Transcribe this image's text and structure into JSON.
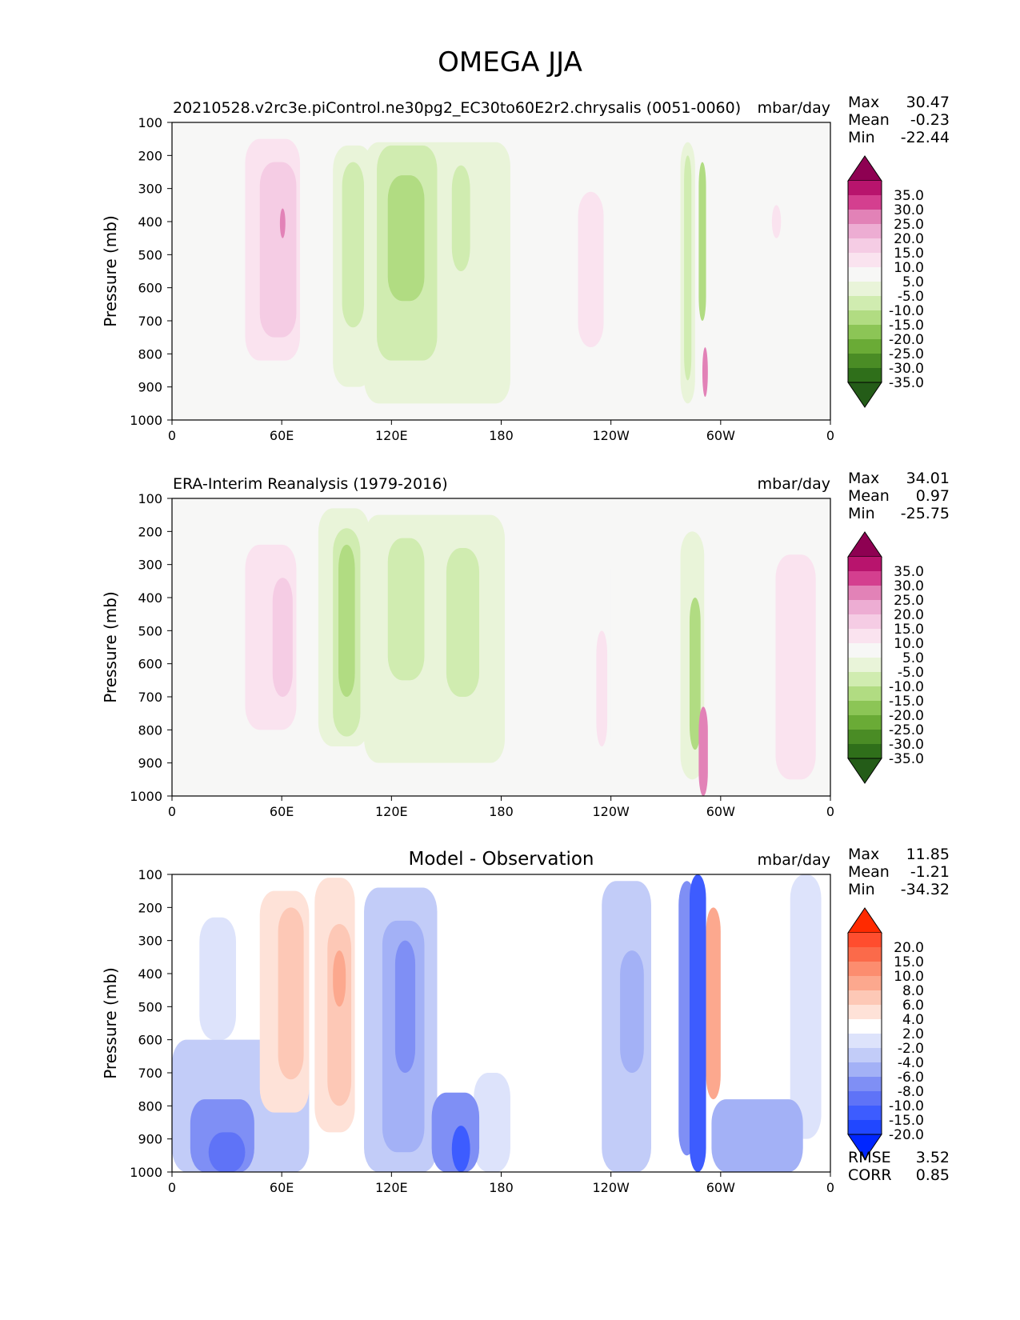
{
  "figure": {
    "title": "OMEGA JJA"
  },
  "panels": [
    {
      "id": "model",
      "title_left": "20210528.v2rc3e.piControl.ne30pg2_EC30to60E2r2.chrysalis (0051-0060)",
      "title_center": "",
      "units": "mbar/day",
      "stats": [
        {
          "label": "Max",
          "value": "30.47"
        },
        {
          "label": "Mean",
          "value": "-0.23"
        },
        {
          "label": "Min",
          "value": "-22.44"
        }
      ],
      "colorbar": {
        "labels": [
          "35.0",
          "30.0",
          "25.0",
          "20.0",
          "15.0",
          "10.0",
          "5.0",
          "-5.0",
          "-10.0",
          "-15.0",
          "-20.0",
          "-25.0",
          "-30.0",
          "-35.0"
        ],
        "colors": [
          "#8e0152",
          "#b8146d",
          "#d43f8f",
          "#e282b7",
          "#edadd3",
          "#f5cce4",
          "#fae3ef",
          "#f7f7f6",
          "#e9f4d9",
          "#d0ecb0",
          "#b1dc82",
          "#8cc556",
          "#6aab36",
          "#4a8c25",
          "#2f6f1a",
          "#245c18"
        ]
      },
      "footer_stats": []
    },
    {
      "id": "obs",
      "title_left": "ERA-Interim Reanalysis (1979-2016)",
      "title_center": "",
      "units": "mbar/day",
      "stats": [
        {
          "label": "Max",
          "value": "34.01"
        },
        {
          "label": "Mean",
          "value": "0.97"
        },
        {
          "label": "Min",
          "value": "-25.75"
        }
      ],
      "colorbar": {
        "labels": [
          "35.0",
          "30.0",
          "25.0",
          "20.0",
          "15.0",
          "10.0",
          "5.0",
          "-5.0",
          "-10.0",
          "-15.0",
          "-20.0",
          "-25.0",
          "-30.0",
          "-35.0"
        ],
        "colors": [
          "#8e0152",
          "#b8146d",
          "#d43f8f",
          "#e282b7",
          "#edadd3",
          "#f5cce4",
          "#fae3ef",
          "#f7f7f6",
          "#e9f4d9",
          "#d0ecb0",
          "#b1dc82",
          "#8cc556",
          "#6aab36",
          "#4a8c25",
          "#2f6f1a",
          "#245c18"
        ]
      },
      "footer_stats": []
    },
    {
      "id": "diff",
      "title_left": "",
      "title_center": "Model - Observation",
      "units": "mbar/day",
      "stats": [
        {
          "label": "Max",
          "value": "11.85"
        },
        {
          "label": "Mean",
          "value": "-1.21"
        },
        {
          "label": "Min",
          "value": "-34.32"
        }
      ],
      "colorbar": {
        "labels": [
          "20.0",
          "15.0",
          "10.0",
          "8.0",
          "6.0",
          "4.0",
          "2.0",
          "-2.0",
          "-4.0",
          "-6.0",
          "-8.0",
          "-10.0",
          "-15.0",
          "-20.0"
        ],
        "colors": [
          "#ff2a00",
          "#ff4d2e",
          "#fb6a4a",
          "#fc8d6f",
          "#fca88e",
          "#fdc8b6",
          "#fee2d8",
          "#ffffff",
          "#dde3fb",
          "#c2ccf8",
          "#a3b1f6",
          "#7f8ff5",
          "#5f73f7",
          "#3d5cff",
          "#2147ff",
          "#0026ff"
        ]
      },
      "footer_stats": [
        {
          "label": "RMSE",
          "value": "3.52"
        },
        {
          "label": "CORR",
          "value": "0.85"
        }
      ]
    }
  ],
  "chart_data": [
    {
      "type": "heatmap",
      "title": "20210528.v2rc3e.piControl.ne30pg2_EC30to60E2r2.chrysalis (0051-0060)",
      "ylabel": "Pressure (mb)",
      "xlabel": "",
      "x_ticks": [
        "0",
        "60E",
        "120E",
        "180",
        "120W",
        "60W",
        "0"
      ],
      "y_ticks": [
        "100",
        "200",
        "300",
        "400",
        "500",
        "600",
        "700",
        "800",
        "900",
        "1000"
      ],
      "xlim": [
        0,
        360
      ],
      "ylim": [
        1000,
        100
      ],
      "y_inverted": true,
      "units": "mbar/day",
      "features": [
        {
          "lon": [
            5,
            35
          ],
          "p": [
            170,
            850
          ],
          "value": 5
        },
        {
          "lon": [
            40,
            70
          ],
          "p": [
            150,
            820
          ],
          "value": 10
        },
        {
          "lon": [
            48,
            68
          ],
          "p": [
            220,
            750
          ],
          "value": 15
        },
        {
          "lon": [
            59,
            62
          ],
          "p": [
            360,
            450
          ],
          "value": 25
        },
        {
          "lon": [
            88,
            110
          ],
          "p": [
            170,
            900
          ],
          "value": -5
        },
        {
          "lon": [
            93,
            105
          ],
          "p": [
            220,
            720
          ],
          "value": -10
        },
        {
          "lon": [
            105,
            185
          ],
          "p": [
            160,
            950
          ],
          "value": -5
        },
        {
          "lon": [
            112,
            145
          ],
          "p": [
            170,
            820
          ],
          "value": -10
        },
        {
          "lon": [
            118,
            138
          ],
          "p": [
            260,
            640
          ],
          "value": -15
        },
        {
          "lon": [
            153,
            163
          ],
          "p": [
            230,
            550
          ],
          "value": -10
        },
        {
          "lon": [
            213,
            238
          ],
          "p": [
            220,
            920
          ],
          "value": 5
        },
        {
          "lon": [
            222,
            236
          ],
          "p": [
            310,
            780
          ],
          "value": 10
        },
        {
          "lon": [
            278,
            286
          ],
          "p": [
            160,
            950
          ],
          "value": -5
        },
        {
          "lon": [
            280,
            284
          ],
          "p": [
            200,
            880
          ],
          "value": -10
        },
        {
          "lon": [
            288,
            292
          ],
          "p": [
            220,
            700
          ],
          "value": -15
        },
        {
          "lon": [
            290,
            293
          ],
          "p": [
            780,
            930
          ],
          "value": 25
        },
        {
          "lon": [
            310,
            355
          ],
          "p": [
            170,
            920
          ],
          "value": 5
        },
        {
          "lon": [
            328,
            333
          ],
          "p": [
            350,
            450
          ],
          "value": 10
        }
      ]
    },
    {
      "type": "heatmap",
      "title": "ERA-Interim Reanalysis (1979-2016)",
      "ylabel": "Pressure (mb)",
      "xlabel": "",
      "x_ticks": [
        "0",
        "60E",
        "120E",
        "180",
        "120W",
        "60W",
        "0"
      ],
      "y_ticks": [
        "100",
        "200",
        "300",
        "400",
        "500",
        "600",
        "700",
        "800",
        "900",
        "1000"
      ],
      "xlim": [
        0,
        360
      ],
      "ylim": [
        1000,
        100
      ],
      "y_inverted": true,
      "units": "mbar/day",
      "features": [
        {
          "lon": [
            0,
            70
          ],
          "p": [
            150,
            1000
          ],
          "value": 5
        },
        {
          "lon": [
            40,
            68
          ],
          "p": [
            240,
            800
          ],
          "value": 10
        },
        {
          "lon": [
            55,
            66
          ],
          "p": [
            340,
            700
          ],
          "value": 15
        },
        {
          "lon": [
            80,
            108
          ],
          "p": [
            130,
            850
          ],
          "value": -5
        },
        {
          "lon": [
            88,
            103
          ],
          "p": [
            190,
            820
          ],
          "value": -10
        },
        {
          "lon": [
            91,
            100
          ],
          "p": [
            240,
            700
          ],
          "value": -15
        },
        {
          "lon": [
            105,
            182
          ],
          "p": [
            150,
            900
          ],
          "value": -5
        },
        {
          "lon": [
            118,
            138
          ],
          "p": [
            220,
            650
          ],
          "value": -10
        },
        {
          "lon": [
            150,
            168
          ],
          "p": [
            250,
            700
          ],
          "value": -10
        },
        {
          "lon": [
            220,
            240
          ],
          "p": [
            240,
            900
          ],
          "value": 5
        },
        {
          "lon": [
            232,
            238
          ],
          "p": [
            500,
            850
          ],
          "value": 10
        },
        {
          "lon": [
            278,
            291
          ],
          "p": [
            200,
            950
          ],
          "value": -5
        },
        {
          "lon": [
            283,
            289
          ],
          "p": [
            400,
            860
          ],
          "value": -15
        },
        {
          "lon": [
            288,
            293
          ],
          "p": [
            730,
            1000
          ],
          "value": 25
        },
        {
          "lon": [
            315,
            360
          ],
          "p": [
            200,
            1000
          ],
          "value": 5
        },
        {
          "lon": [
            330,
            352
          ],
          "p": [
            270,
            950
          ],
          "value": 10
        }
      ]
    },
    {
      "type": "heatmap",
      "title": "Model - Observation",
      "ylabel": "Pressure (mb)",
      "xlabel": "",
      "x_ticks": [
        "0",
        "60E",
        "120E",
        "180",
        "120W",
        "60W",
        "0"
      ],
      "y_ticks": [
        "100",
        "200",
        "300",
        "400",
        "500",
        "600",
        "700",
        "800",
        "900",
        "1000"
      ],
      "xlim": [
        0,
        360
      ],
      "ylim": [
        1000,
        100
      ],
      "y_inverted": true,
      "units": "mbar/day",
      "features": [
        {
          "lon": [
            0,
            75
          ],
          "p": [
            600,
            1000
          ],
          "value": -4
        },
        {
          "lon": [
            10,
            45
          ],
          "p": [
            780,
            1000
          ],
          "value": -8
        },
        {
          "lon": [
            20,
            40
          ],
          "p": [
            880,
            1000
          ],
          "value": -10
        },
        {
          "lon": [
            15,
            35
          ],
          "p": [
            230,
            600
          ],
          "value": -2
        },
        {
          "lon": [
            38,
            80
          ],
          "p": [
            110,
            850
          ],
          "value": 2
        },
        {
          "lon": [
            48,
            75
          ],
          "p": [
            150,
            820
          ],
          "value": 4
        },
        {
          "lon": [
            58,
            72
          ],
          "p": [
            200,
            720
          ],
          "value": 6
        },
        {
          "lon": [
            78,
            100
          ],
          "p": [
            110,
            880
          ],
          "value": 4
        },
        {
          "lon": [
            85,
            98
          ],
          "p": [
            250,
            800
          ],
          "value": 6
        },
        {
          "lon": [
            88,
            95
          ],
          "p": [
            330,
            500
          ],
          "value": 8
        },
        {
          "lon": [
            105,
            145
          ],
          "p": [
            140,
            1000
          ],
          "value": -4
        },
        {
          "lon": [
            115,
            138
          ],
          "p": [
            240,
            940
          ],
          "value": -6
        },
        {
          "lon": [
            122,
            133
          ],
          "p": [
            300,
            700
          ],
          "value": -8
        },
        {
          "lon": [
            142,
            168
          ],
          "p": [
            760,
            1000
          ],
          "value": -8
        },
        {
          "lon": [
            153,
            163
          ],
          "p": [
            860,
            1000
          ],
          "value": -15
        },
        {
          "lon": [
            165,
            185
          ],
          "p": [
            700,
            1000
          ],
          "value": -2
        },
        {
          "lon": [
            200,
            225
          ],
          "p": [
            300,
            800
          ],
          "value": 2
        },
        {
          "lon": [
            235,
            262
          ],
          "p": [
            120,
            1000
          ],
          "value": -4
        },
        {
          "lon": [
            245,
            258
          ],
          "p": [
            330,
            700
          ],
          "value": -6
        },
        {
          "lon": [
            277,
            286
          ],
          "p": [
            120,
            950
          ],
          "value": -8
        },
        {
          "lon": [
            283,
            292
          ],
          "p": [
            100,
            1000
          ],
          "value": -15
        },
        {
          "lon": [
            290,
            310
          ],
          "p": [
            140,
            880
          ],
          "value": 2
        },
        {
          "lon": [
            292,
            300
          ],
          "p": [
            200,
            780
          ],
          "value": 8
        },
        {
          "lon": [
            295,
            345
          ],
          "p": [
            780,
            1000
          ],
          "value": -6
        },
        {
          "lon": [
            338,
            355
          ],
          "p": [
            100,
            900
          ],
          "value": -2
        }
      ]
    }
  ]
}
